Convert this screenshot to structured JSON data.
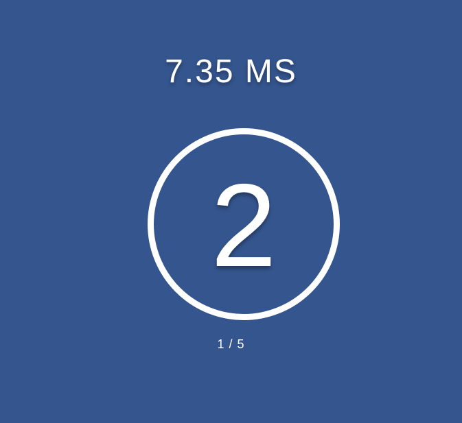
{
  "timer": {
    "elapsed": "7.35 MS"
  },
  "target": {
    "number": "2"
  },
  "progress": {
    "text": "1 / 5",
    "current": 1,
    "total": 5
  },
  "colors": {
    "background": "#35558e",
    "foreground": "#ffffff"
  }
}
